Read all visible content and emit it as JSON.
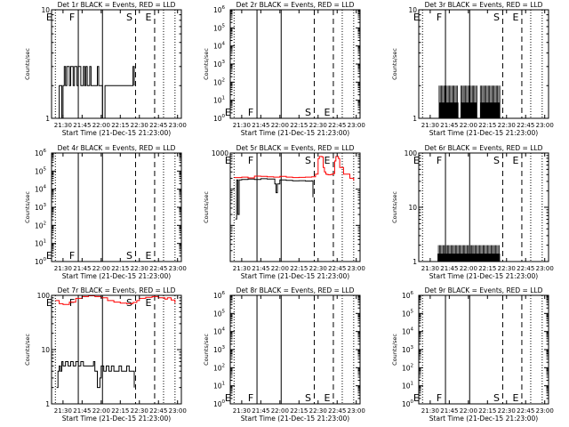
{
  "common": {
    "x_ticks": [
      "21:30",
      "21:45",
      "22:00",
      "22:15",
      "22:30",
      "22:45",
      "23:00"
    ],
    "x_tick_minutes": [
      0,
      15,
      30,
      45,
      60,
      75,
      90
    ],
    "xlabel": "Start Time (21-Dec-15 21:23:00)",
    "ylabel": "Counts/sec",
    "colors": {
      "events": "#000000",
      "lld": "#ff0000"
    },
    "markers": [
      {
        "label": "E",
        "minute": -6,
        "style": "dotted"
      },
      {
        "label": "F",
        "minute": 12,
        "style": "solid"
      },
      {
        "label": "",
        "minute": 31,
        "style": "solid"
      },
      {
        "label": "S",
        "minute": 57,
        "style": "dashed"
      },
      {
        "label": "E",
        "minute": 72,
        "style": "dashed"
      },
      {
        "label": "",
        "minute": 79,
        "style": "dotted"
      },
      {
        "label": "",
        "minute": 88,
        "style": "dotted"
      }
    ]
  },
  "chart_data": [
    {
      "type": "line",
      "title": "Det 1r BLACK = Events, RED = LLD",
      "y_scale": "log",
      "y_range": [
        1,
        10
      ],
      "y_ticks": [
        {
          "v": 1,
          "label": "1"
        },
        {
          "v": 10,
          "label": "10"
        }
      ],
      "marker_labels_at": "top",
      "series": [
        {
          "role": "events",
          "x": [
            -5,
            -4,
            -3,
            -2,
            -1,
            0,
            1,
            2,
            3,
            4,
            5,
            6,
            7,
            8,
            9,
            10,
            11,
            12,
            13,
            14,
            15,
            16,
            17,
            18,
            19,
            20,
            21,
            22,
            23,
            24,
            25,
            26,
            27,
            28,
            29,
            30,
            31,
            32,
            33,
            34,
            35,
            36,
            37,
            38,
            39,
            40,
            41,
            42,
            43,
            44,
            45,
            46,
            47,
            48,
            49,
            50,
            51,
            52,
            53,
            54,
            55,
            56
          ],
          "y": [
            1,
            1,
            2,
            2,
            1,
            2,
            3,
            2,
            3,
            3,
            2,
            3,
            3,
            2,
            3,
            3,
            2,
            3,
            3,
            2,
            2,
            3,
            2,
            3,
            2,
            2,
            3,
            2,
            2,
            2,
            2,
            2,
            3,
            2,
            2,
            2,
            1,
            1,
            2,
            2,
            2,
            2,
            2,
            2,
            2,
            2,
            2,
            2,
            2,
            2,
            2,
            2,
            2,
            2,
            2,
            2,
            2,
            2,
            2,
            2,
            3,
            2
          ]
        }
      ]
    },
    {
      "type": "line",
      "title": "Det 2r BLACK = Events, RED = LLD",
      "y_scale": "log",
      "y_range": [
        1,
        1000000
      ],
      "y_ticks": [
        {
          "v": 1,
          "label": "10^0"
        },
        {
          "v": 10,
          "label": "10^1"
        },
        {
          "v": 100,
          "label": "10^2"
        },
        {
          "v": 1000,
          "label": "10^3"
        },
        {
          "v": 10000,
          "label": "10^4"
        },
        {
          "v": 100000,
          "label": "10^5"
        },
        {
          "v": 1000000,
          "label": "10^6"
        }
      ],
      "marker_labels_at": "bottom",
      "series": []
    },
    {
      "type": "line",
      "title": "Det 3r BLACK = Events, RED = LLD",
      "y_scale": "log",
      "y_range": [
        1,
        10
      ],
      "y_ticks": [
        {
          "v": 1,
          "label": "1"
        },
        {
          "v": 10,
          "label": "10"
        }
      ],
      "marker_labels_at": "top",
      "series": [
        {
          "role": "events",
          "style": "spiky",
          "x_from": 7,
          "x_to": 55,
          "base": 1,
          "peak": 2,
          "gaps": [
            [
              22,
              24
            ],
            [
              37,
              39
            ]
          ]
        }
      ]
    },
    {
      "type": "line",
      "title": "Det 4r BLACK = Events, RED = LLD",
      "y_scale": "log",
      "y_range": [
        1,
        1000000
      ],
      "y_ticks": [
        {
          "v": 1,
          "label": "10^0"
        },
        {
          "v": 10,
          "label": "10^1"
        },
        {
          "v": 100,
          "label": "10^2"
        },
        {
          "v": 1000,
          "label": "10^3"
        },
        {
          "v": 10000,
          "label": "10^4"
        },
        {
          "v": 100000,
          "label": "10^5"
        },
        {
          "v": 1000000,
          "label": "10^6"
        }
      ],
      "marker_labels_at": "bottom",
      "series": []
    },
    {
      "type": "line",
      "title": "Det 5r BLACK = Events, RED = LLD",
      "y_scale": "log",
      "y_range": [
        1,
        1000
      ],
      "y_ticks": [
        {
          "v": 1,
          "label": "1"
        },
        {
          "v": 10,
          "label": "10"
        },
        {
          "v": 100,
          "label": "100"
        },
        {
          "v": 1000,
          "label": "1000"
        }
      ],
      "y_tick_labels_visible": [
        "1000"
      ],
      "marker_labels_at": "top",
      "series": [
        {
          "role": "lld",
          "x": [
            -6,
            0,
            5,
            10,
            15,
            20,
            25,
            30,
            35,
            40,
            45,
            50,
            55,
            58,
            60,
            61,
            62,
            63,
            64,
            65,
            66,
            67,
            68,
            69,
            70,
            71,
            72,
            73,
            74,
            75,
            76,
            77,
            80,
            85,
            88
          ],
          "y": [
            210,
            215,
            205,
            230,
            225,
            220,
            215,
            225,
            215,
            210,
            212,
            215,
            220,
            260,
            700,
            800,
            800,
            780,
            400,
            300,
            260,
            255,
            250,
            250,
            255,
            260,
            270,
            600,
            800,
            800,
            700,
            400,
            260,
            200,
            170
          ]
        },
        {
          "role": "events",
          "x": [
            -5,
            -4,
            -3,
            -2,
            0,
            5,
            10,
            15,
            20,
            25,
            26,
            27,
            28,
            30,
            35,
            40,
            45,
            50,
            55,
            56
          ],
          "y": [
            15,
            180,
            20,
            180,
            185,
            190,
            185,
            195,
            190,
            190,
            140,
            80,
            140,
            180,
            175,
            170,
            172,
            168,
            170,
            60
          ]
        }
      ]
    },
    {
      "type": "line",
      "title": "Det 6r BLACK = Events, RED = LLD",
      "y_scale": "log",
      "y_range": [
        1,
        100
      ],
      "y_ticks": [
        {
          "v": 1,
          "label": "1"
        },
        {
          "v": 10,
          "label": "10"
        },
        {
          "v": 100,
          "label": "100"
        }
      ],
      "marker_labels_at": "top",
      "series": [
        {
          "role": "events",
          "style": "spiky",
          "x_from": 6,
          "x_to": 55,
          "base": 1,
          "peak": 2,
          "gaps": []
        }
      ]
    },
    {
      "type": "line",
      "title": "Det 7r BLACK = Events, RED = LLD",
      "y_scale": "log",
      "y_range": [
        1,
        100
      ],
      "y_ticks": [
        {
          "v": 1,
          "label": "1"
        },
        {
          "v": 10,
          "label": "10"
        },
        {
          "v": 100,
          "label": "100"
        }
      ],
      "marker_labels_at": "top",
      "series": [
        {
          "role": "lld",
          "x": [
            -6,
            -3,
            0,
            5,
            10,
            15,
            20,
            25,
            30,
            35,
            40,
            45,
            50,
            55,
            58,
            60,
            65,
            70,
            75,
            80,
            82,
            85,
            88
          ],
          "y": [
            80,
            70,
            68,
            75,
            88,
            95,
            98,
            95,
            90,
            80,
            75,
            72,
            70,
            74,
            80,
            88,
            92,
            95,
            90,
            85,
            90,
            82,
            72
          ]
        },
        {
          "role": "events",
          "x": [
            -5,
            -4,
            -3,
            -2,
            -1,
            0,
            2,
            4,
            6,
            8,
            10,
            12,
            14,
            16,
            18,
            20,
            22,
            24,
            25,
            26,
            27,
            28,
            29,
            30,
            32,
            34,
            36,
            38,
            40,
            42,
            44,
            46,
            48,
            50,
            52,
            54,
            56
          ],
          "y": [
            2,
            4,
            5,
            4,
            6,
            5,
            6,
            5,
            6,
            5,
            6,
            5,
            6,
            5,
            5,
            5,
            5,
            6,
            4,
            4,
            2,
            2,
            3,
            5,
            4,
            5,
            4,
            5,
            4,
            4,
            5,
            4,
            4,
            5,
            4,
            4,
            2
          ]
        }
      ]
    },
    {
      "type": "line",
      "title": "Det 8r BLACK = Events, RED = LLD",
      "y_scale": "log",
      "y_range": [
        1,
        1000000
      ],
      "y_ticks": [
        {
          "v": 1,
          "label": "10^0"
        },
        {
          "v": 10,
          "label": "10^1"
        },
        {
          "v": 100,
          "label": "10^2"
        },
        {
          "v": 1000,
          "label": "10^3"
        },
        {
          "v": 10000,
          "label": "10^4"
        },
        {
          "v": 100000,
          "label": "10^5"
        },
        {
          "v": 1000000,
          "label": "10^6"
        }
      ],
      "marker_labels_at": "bottom",
      "series": []
    },
    {
      "type": "line",
      "title": "Det 9r BLACK = Events, RED = LLD",
      "y_scale": "log",
      "y_range": [
        1,
        1000000
      ],
      "y_ticks": [
        {
          "v": 1,
          "label": "10^0"
        },
        {
          "v": 10,
          "label": "10^1"
        },
        {
          "v": 100,
          "label": "10^2"
        },
        {
          "v": 1000,
          "label": "10^3"
        },
        {
          "v": 10000,
          "label": "10^4"
        },
        {
          "v": 100000,
          "label": "10^5"
        },
        {
          "v": 1000000,
          "label": "10^6"
        }
      ],
      "marker_labels_at": "bottom",
      "series": []
    }
  ]
}
